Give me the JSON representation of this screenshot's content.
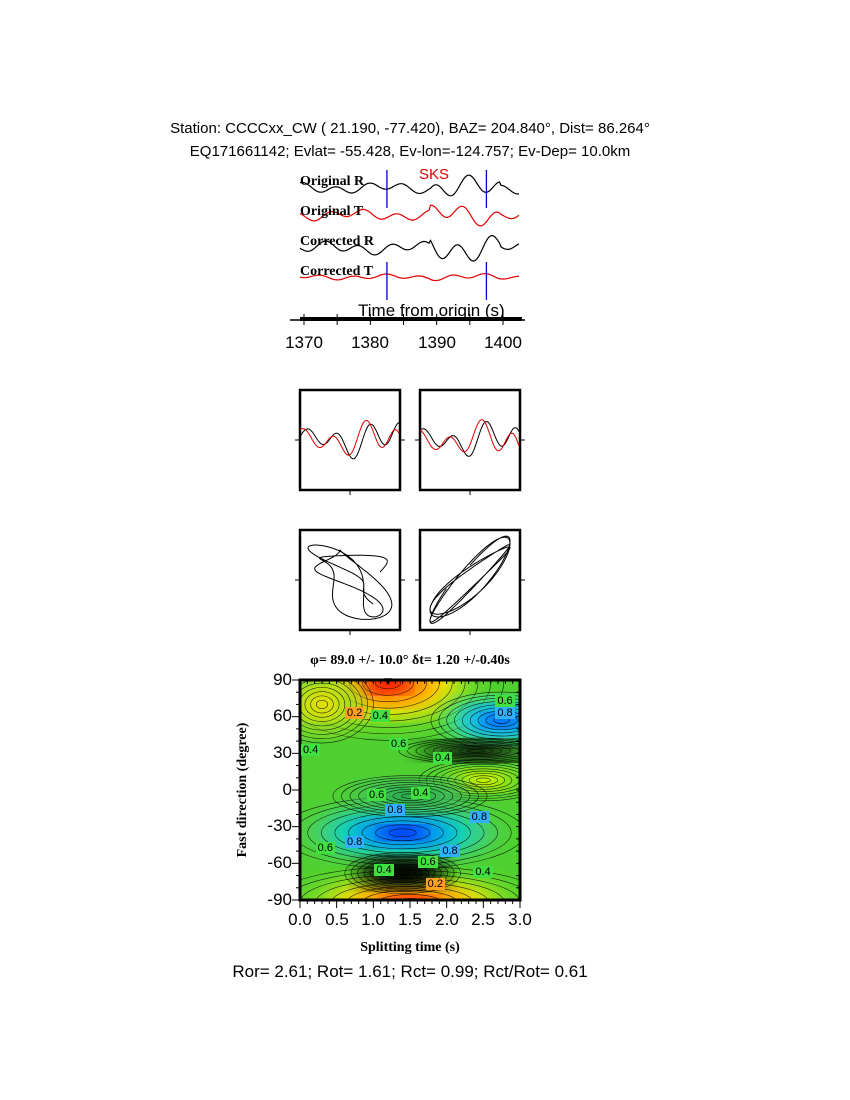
{
  "header": {
    "line1": "Station: CCCCxx_CW (  21.190,  -77.420), BAZ=  204.840°, Dist=   86.264°",
    "line2": "EQ171661142; Evlat= -55.428, Ev-lon=-124.757; Ev-Dep= 10.0km"
  },
  "traces": {
    "phase_label": "SKS",
    "labels": [
      "Original R",
      "Original T",
      "Corrected R",
      "Corrected T"
    ],
    "xlabel": "Time from origin (s)",
    "xticks": [
      "1370",
      "1380",
      "1390",
      "1400"
    ],
    "window_start": 1382.5,
    "window_end": 1397.5,
    "colors": {
      "radial": "#000000",
      "transverse": "#e00000",
      "window": "#0000cc"
    }
  },
  "chart_data": {
    "type": "heatmap",
    "title": "φ= 89.0 +/- 10.0° δt= 1.20 +/-0.40s",
    "xlabel": "Splitting time (s)",
    "ylabel": "Fast direction (degree)",
    "xlim": [
      0,
      3
    ],
    "ylim": [
      -90,
      90
    ],
    "xticks": [
      "0.0",
      "0.5",
      "1.0",
      "1.5",
      "2.0",
      "2.5",
      "3.0"
    ],
    "yticks": [
      "90",
      "60",
      "30",
      "0",
      "-30",
      "-60",
      "-90"
    ],
    "best_fit": {
      "splitting_time": 1.2,
      "fast_direction": 89.0
    },
    "contour_labels": [
      {
        "text": "0.2",
        "x": 0.75,
        "y": 62
      },
      {
        "text": "0.4",
        "x": 1.1,
        "y": 60
      },
      {
        "text": "0.6",
        "x": 2.8,
        "y": 72
      },
      {
        "text": "0.8",
        "x": 2.8,
        "y": 62
      },
      {
        "text": "0.4",
        "x": 0.15,
        "y": 32
      },
      {
        "text": "0.6",
        "x": 1.35,
        "y": 37
      },
      {
        "text": "0.4",
        "x": 1.95,
        "y": 25
      },
      {
        "text": "0.6",
        "x": 1.05,
        "y": -5
      },
      {
        "text": "0.4",
        "x": 1.65,
        "y": -3
      },
      {
        "text": "0.8",
        "x": 1.3,
        "y": -17
      },
      {
        "text": "0.8",
        "x": 2.45,
        "y": -23
      },
      {
        "text": "0.6",
        "x": 0.35,
        "y": -48
      },
      {
        "text": "0.8",
        "x": 0.75,
        "y": -43
      },
      {
        "text": "0.8",
        "x": 2.05,
        "y": -51
      },
      {
        "text": "0.6",
        "x": 1.75,
        "y": -60
      },
      {
        "text": "0.4",
        "x": 1.15,
        "y": -66
      },
      {
        "text": "0.4",
        "x": 2.5,
        "y": -68
      },
      {
        "text": "0.2",
        "x": 1.85,
        "y": -78
      }
    ]
  },
  "footer": "Ror= 2.61; Rot= 1.61; Rct= 0.99; Rct/Rot= 0.61"
}
